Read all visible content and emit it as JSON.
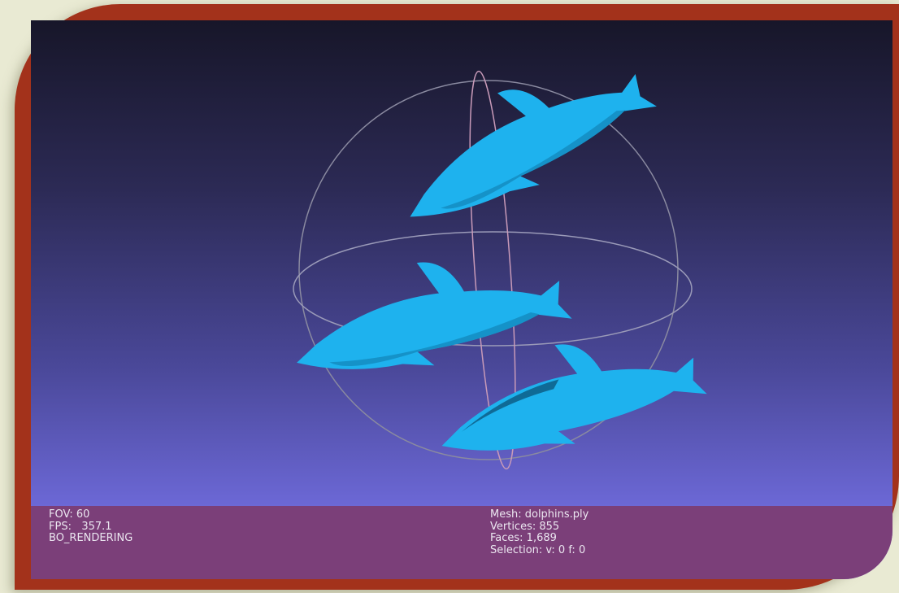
{
  "info": {
    "left": [
      "FOV: 60",
      "FPS:   357.1",
      "BO_RENDERING"
    ],
    "right": [
      "Mesh: dolphins.ply",
      "Vertices: 855",
      "Faces: 1,689",
      "Selection: v: 0 f: 0"
    ]
  }
}
